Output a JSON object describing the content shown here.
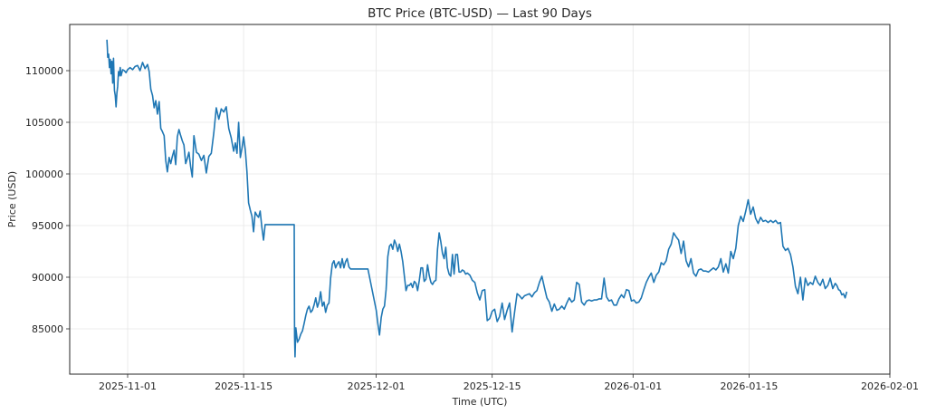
{
  "chart_data": {
    "type": "line",
    "title": "BTC Price (BTC-USD) — Last 90 Days",
    "xlabel": "Time (UTC)",
    "ylabel": "Price (USD)",
    "ylim": [
      80600,
      114000
    ],
    "xlim": [
      "2025-10-24",
      "2026-02-01"
    ],
    "grid": true,
    "legend": null,
    "line_color": "#1f77b4",
    "y_ticks": [
      85000,
      90000,
      95000,
      100000,
      105000,
      110000
    ],
    "y_tick_labels": [
      "85000",
      "90000",
      "95000",
      "100000",
      "105000",
      "110000"
    ],
    "x_ticks": [
      "2025-11-01",
      "2025-11-15",
      "2025-12-01",
      "2025-12-15",
      "2026-01-01",
      "2026-01-15",
      "2026-02-01"
    ],
    "x_tick_labels": [
      "2025-11-01",
      "2025-11-15",
      "2025-12-01",
      "2025-12-15",
      "2026-01-01",
      "2026-01-15",
      "2026-02-01"
    ],
    "series": [
      {
        "name": "BTC-USD",
        "x_day_offset_from_2025_11_01": [
          -2.5,
          -2.45,
          -2.4,
          -2.3,
          -2.2,
          -2.1,
          -2.0,
          -1.9,
          -1.8,
          -1.7,
          -1.6,
          -1.5,
          -1.4,
          -1.3,
          -1.2,
          -1.1,
          -1.0,
          -0.9,
          -0.8,
          -0.6,
          -0.4,
          -0.2,
          0.0,
          0.3,
          0.6,
          0.9,
          1.2,
          1.5,
          1.8,
          2.1,
          2.4,
          2.6,
          2.8,
          3.0,
          3.2,
          3.4,
          3.6,
          3.8,
          4.0,
          4.2,
          4.4,
          4.6,
          4.8,
          5.0,
          5.2,
          5.4,
          5.6,
          5.8,
          6.0,
          6.2,
          6.4,
          6.6,
          6.8,
          7.0,
          7.2,
          7.4,
          7.6,
          7.8,
          8.0,
          8.3,
          8.6,
          8.9,
          9.2,
          9.5,
          9.8,
          10.1,
          10.4,
          10.7,
          11.0,
          11.3,
          11.6,
          11.9,
          12.2,
          12.5,
          12.8,
          13.0,
          13.2,
          13.4,
          13.6,
          13.8,
          14.0,
          14.2,
          14.4,
          14.6,
          14.8,
          15.0,
          15.2,
          15.4,
          15.6,
          15.8,
          16.0,
          16.2,
          16.4,
          16.6,
          20.1,
          20.15,
          20.2,
          20.3,
          20.5,
          20.7,
          20.9,
          21.1,
          21.3,
          21.5,
          21.7,
          21.9,
          22.1,
          22.3,
          22.5,
          22.7,
          22.9,
          23.1,
          23.3,
          23.5,
          23.7,
          23.9,
          24.1,
          24.3,
          24.5,
          24.7,
          24.9,
          25.1,
          25.3,
          25.5,
          25.7,
          25.9,
          26.1,
          26.3,
          26.5,
          26.7,
          26.9,
          27.1,
          27.3,
          27.5,
          28.0,
          29.0,
          30.0,
          30.2,
          30.4,
          30.6,
          30.8,
          31.0,
          31.2,
          31.4,
          31.6,
          31.8,
          32.0,
          32.2,
          32.4,
          32.6,
          32.8,
          33.0,
          33.2,
          33.4,
          33.6,
          33.8,
          34.0,
          34.2,
          34.4,
          34.6,
          34.8,
          35.0,
          35.2,
          35.4,
          35.6,
          35.8,
          36.0,
          36.2,
          36.4,
          36.6,
          36.8,
          37.0,
          37.2,
          37.4,
          37.6,
          37.8,
          38.0,
          38.2,
          38.4,
          38.6,
          38.8,
          39.0,
          39.2,
          39.4,
          39.6,
          39.8,
          40.0,
          40.2,
          40.4,
          40.6,
          40.8,
          41.0,
          41.3,
          41.6,
          41.9,
          42.2,
          42.5,
          42.8,
          43.1,
          43.4,
          43.7,
          44.0,
          44.3,
          44.6,
          44.9,
          45.2,
          45.5,
          45.8,
          46.1,
          46.4,
          46.7,
          47.0,
          47.3,
          47.6,
          47.9,
          48.2,
          48.5,
          48.8,
          49.1,
          49.4,
          49.7,
          50.0,
          50.3,
          50.6,
          50.9,
          51.2,
          51.5,
          51.8,
          52.1,
          52.4,
          52.7,
          53.0,
          53.3,
          53.6,
          53.9,
          54.2,
          54.5,
          54.8,
          55.1,
          55.4,
          55.7,
          56.0,
          56.3,
          56.6,
          56.9,
          57.2,
          57.5,
          57.8,
          58.1,
          58.4,
          58.7,
          59.0,
          59.3,
          59.6,
          59.9,
          60.2,
          60.5,
          60.8,
          61.1,
          61.4,
          61.7,
          62.0,
          62.3,
          62.6,
          62.9,
          63.2,
          63.5,
          63.8,
          64.1,
          64.4,
          64.7,
          65.0,
          65.3,
          65.6,
          65.9,
          66.2,
          66.5,
          66.8,
          67.1,
          67.4,
          67.7,
          68.0,
          68.3,
          68.6,
          68.9,
          69.2,
          69.5,
          69.8,
          70.1,
          70.4,
          70.7,
          71.0,
          71.3,
          71.6,
          71.9,
          72.2,
          72.5,
          72.8,
          73.1,
          73.4,
          73.7,
          74.0,
          74.3,
          74.6,
          74.9,
          75.2,
          75.5,
          75.8,
          76.1,
          76.4,
          76.7,
          77.0,
          77.3,
          77.6,
          77.9,
          78.2,
          78.5,
          78.8,
          79.1,
          79.4,
          79.7,
          80.0,
          80.3,
          80.6,
          80.9,
          81.2,
          81.5,
          81.8,
          82.1,
          82.4,
          82.7,
          83.0,
          83.3,
          83.6,
          83.9,
          84.2,
          84.5,
          84.8,
          85.1,
          85.4,
          85.6,
          85.8,
          86.0,
          86.2,
          86.4,
          86.6,
          86.8
        ],
        "values": [
          113000,
          112200,
          111300,
          111600,
          110300,
          111100,
          109700,
          110900,
          108800,
          111200,
          108100,
          107600,
          106500,
          107800,
          108500,
          109900,
          109500,
          110300,
          109500,
          110100,
          110000,
          109800,
          110100,
          110300,
          110100,
          110400,
          110500,
          110000,
          110800,
          110200,
          110600,
          109900,
          108200,
          107600,
          106400,
          107100,
          105800,
          107000,
          104400,
          104100,
          103700,
          101300,
          100200,
          101600,
          101000,
          101700,
          102300,
          100900,
          103600,
          104300,
          103700,
          103200,
          102800,
          101000,
          101500,
          102100,
          100700,
          99700,
          103700,
          102100,
          101900,
          101300,
          101800,
          100100,
          101700,
          102000,
          104000,
          106400,
          105300,
          106300,
          106000,
          106500,
          104400,
          103500,
          102200,
          103000,
          102000,
          105000,
          101600,
          102500,
          103600,
          102300,
          100200,
          97200,
          96500,
          95900,
          94400,
          96300,
          96000,
          95800,
          96400,
          94800,
          93600,
          95100,
          95100,
          84300,
          82300,
          85100,
          83700,
          84000,
          84500,
          84800,
          85500,
          86300,
          86900,
          87200,
          86600,
          86800,
          87300,
          88000,
          87100,
          87600,
          88600,
          87200,
          87600,
          86600,
          87300,
          87500,
          89900,
          91300,
          91600,
          90900,
          91300,
          91500,
          90900,
          91800,
          90900,
          91500,
          91800,
          91000,
          90800,
          90800,
          90800,
          90800,
          90800,
          90800,
          86800,
          85500,
          84400,
          86100,
          86900,
          87200,
          88800,
          92000,
          93000,
          93200,
          92700,
          93600,
          93200,
          92500,
          93200,
          92500,
          91500,
          90100,
          88700,
          89200,
          89200,
          89400,
          89000,
          89600,
          89400,
          88700,
          89700,
          90900,
          90900,
          89600,
          89800,
          91200,
          90200,
          89500,
          89300,
          89600,
          89700,
          92700,
          94300,
          93400,
          92300,
          91800,
          92900,
          90900,
          90300,
          90100,
          92200,
          90300,
          92200,
          92200,
          90500,
          90500,
          90700,
          90600,
          90300,
          90400,
          90200,
          89700,
          89500,
          88500,
          87800,
          88700,
          88800,
          85800,
          86000,
          86700,
          86900,
          85700,
          86200,
          87500,
          85900,
          86800,
          87500,
          84700,
          86600,
          88400,
          88200,
          87900,
          88200,
          88300,
          88400,
          88100,
          88500,
          88700,
          89500,
          90100,
          89000,
          88000,
          87600,
          86700,
          87400,
          86800,
          86900,
          87200,
          86900,
          87500,
          88000,
          87600,
          87800,
          89500,
          89300,
          87600,
          87300,
          87700,
          87800,
          87700,
          87800,
          87800,
          87900,
          87900,
          89900,
          88100,
          87700,
          87800,
          87300,
          87300,
          87900,
          88300,
          88000,
          88800,
          88700,
          87700,
          87800,
          87500,
          87600,
          88000,
          88800,
          89500,
          90000,
          90400,
          89500,
          90200,
          90500,
          91400,
          91200,
          91600,
          92700,
          93200,
          94300,
          93900,
          93600,
          92300,
          93500,
          91600,
          91000,
          91800,
          90400,
          90100,
          90700,
          90800,
          90600,
          90600,
          90500,
          90700,
          90900,
          90700,
          91000,
          91800,
          90500,
          91300,
          90400,
          92500,
          91800,
          92800,
          95000,
          95900,
          95400,
          96400,
          97500,
          96100,
          96800,
          95700,
          95200,
          95800,
          95400,
          95500,
          95300,
          95500,
          95300,
          95500,
          95200,
          95300,
          93000,
          92600,
          92800,
          92200,
          91000,
          89100,
          88400,
          90000,
          87800,
          89900,
          89200,
          89500,
          89300,
          90100,
          89500,
          89200,
          89800,
          88900,
          89200,
          89900,
          88900,
          89400,
          89200,
          88800,
          88700,
          88300,
          88400,
          88000,
          88600,
          86400,
          87100,
          86900,
          87800,
          87500,
          88600,
          88200,
          87700
        ]
      }
    ]
  },
  "figure": {
    "title": "BTC Price (BTC-USD) — Last 90 Days",
    "xlabel": "Time (UTC)",
    "ylabel": "Price (USD)"
  }
}
